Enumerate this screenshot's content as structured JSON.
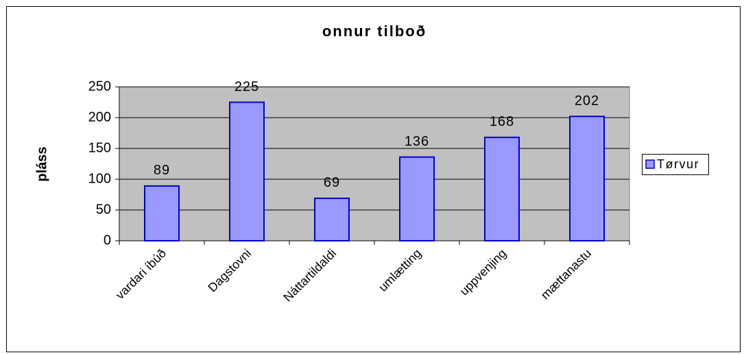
{
  "chart_data": {
    "type": "bar",
    "title": "onnur tilboð",
    "ylabel": "pláss",
    "categories": [
      "vardari íbúð",
      "Dagstovni",
      "Náttartildaldi",
      "umlætting",
      "uppvenjing",
      "mættanastu"
    ],
    "series": [
      {
        "name": "Tørvur",
        "color": "#9999ff",
        "values": [
          89,
          225,
          69,
          136,
          168,
          202
        ]
      }
    ],
    "ylim": [
      0,
      250
    ],
    "yticks": [
      0,
      50,
      100,
      150,
      200,
      250
    ],
    "grid": true,
    "legend": "right"
  }
}
